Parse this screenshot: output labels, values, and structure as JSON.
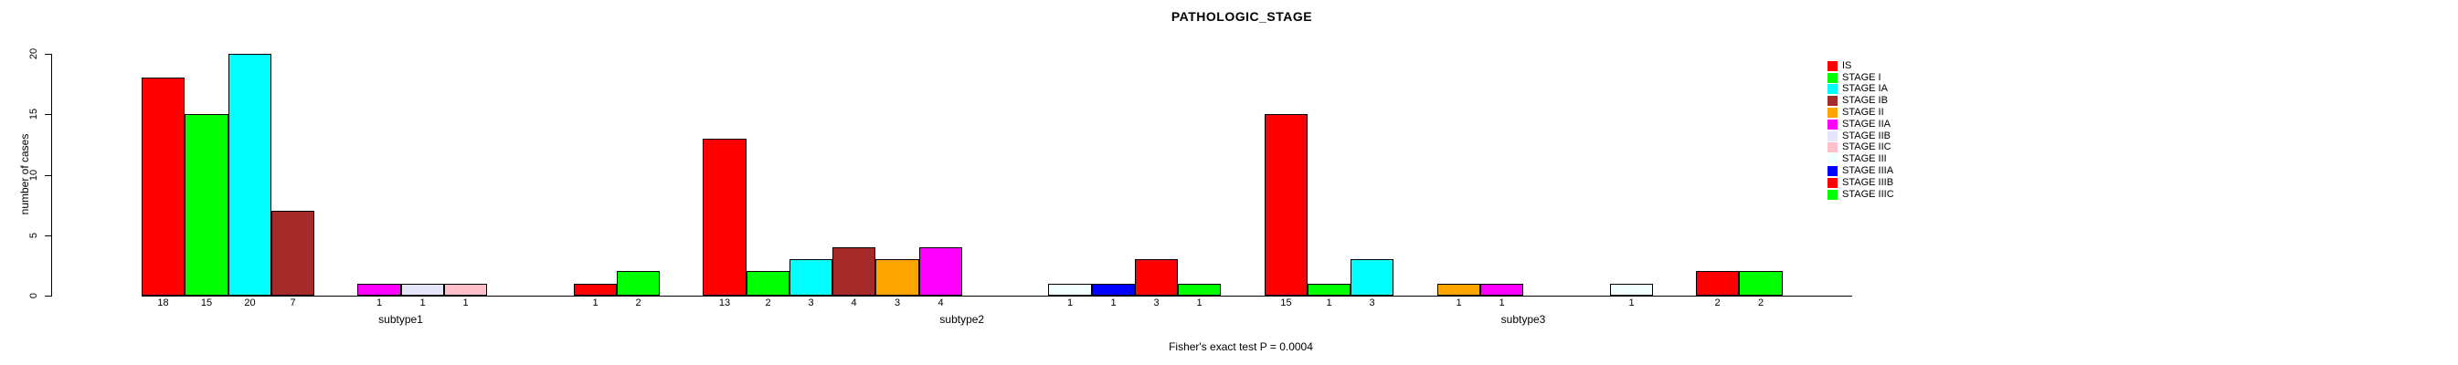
{
  "chart_data": {
    "type": "bar",
    "grouped": true,
    "title": "PATHOLOGIC_STAGE",
    "xlabel": "",
    "ylabel": "number of cases",
    "ylim": [
      0,
      20
    ],
    "yticks": [
      0,
      5,
      10,
      15,
      20
    ],
    "grid": false,
    "legend_position": "right",
    "categories": [
      "subtype1",
      "subtype2",
      "subtype3"
    ],
    "stage_labels": [
      "IS",
      "STAGE I",
      "STAGE IA",
      "STAGE IB",
      "STAGE II",
      "STAGE IIA",
      "STAGE IIB",
      "STAGE IIC",
      "STAGE III",
      "STAGE IIIA",
      "STAGE IIIB",
      "STAGE IIIC"
    ],
    "stage_colors": [
      "#FF0000",
      "#00FF00",
      "#00FFFF",
      "#A52A2A",
      "#FFA500",
      "#FF00FF",
      "#E6E6FA",
      "#FFC0CB",
      "#F0FFFF",
      "#0000FF",
      "#FF0000",
      "#00FF00"
    ],
    "series": [
      {
        "name": "subtype1",
        "values": [
          18,
          15,
          20,
          7,
          0,
          1,
          1,
          1,
          0,
          0,
          1,
          2
        ]
      },
      {
        "name": "subtype2",
        "values": [
          13,
          2,
          3,
          4,
          3,
          4,
          0,
          0,
          1,
          1,
          3,
          1
        ]
      },
      {
        "name": "subtype3",
        "values": [
          15,
          1,
          3,
          0,
          1,
          1,
          0,
          0,
          1,
          0,
          2,
          2
        ]
      }
    ],
    "annotation": "Fisher's exact test P = 0.0004",
    "bar_border_color": "#000000",
    "axis_color": "#000000"
  }
}
